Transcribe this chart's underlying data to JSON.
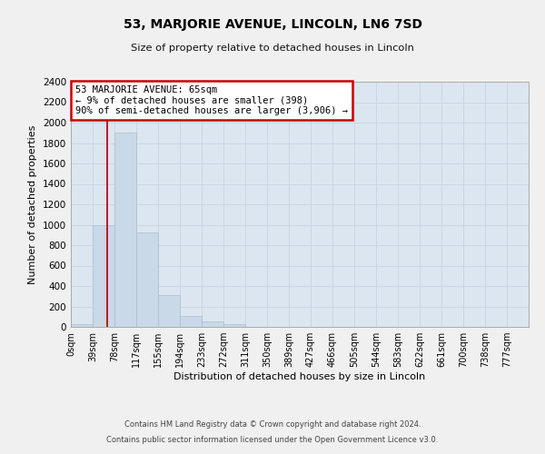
{
  "title": "53, MARJORIE AVENUE, LINCOLN, LN6 7SD",
  "subtitle": "Size of property relative to detached houses in Lincoln",
  "xlabel": "Distribution of detached houses by size in Lincoln",
  "ylabel": "Number of detached properties",
  "annotation_title": "53 MARJORIE AVENUE: 65sqm",
  "annotation_line1": "← 9% of detached houses are smaller (398)",
  "annotation_line2": "90% of semi-detached houses are larger (3,906) →",
  "footer1": "Contains HM Land Registry data © Crown copyright and database right 2024.",
  "footer2": "Contains public sector information licensed under the Open Government Licence v3.0.",
  "bar_labels": [
    "0sqm",
    "39sqm",
    "78sqm",
    "117sqm",
    "155sqm",
    "194sqm",
    "233sqm",
    "272sqm",
    "311sqm",
    "350sqm",
    "389sqm",
    "427sqm",
    "466sqm",
    "505sqm",
    "544sqm",
    "583sqm",
    "622sqm",
    "661sqm",
    "700sqm",
    "738sqm",
    "777sqm"
  ],
  "bar_values": [
    25,
    1000,
    1900,
    925,
    310,
    105,
    50,
    30,
    0,
    0,
    0,
    0,
    0,
    0,
    0,
    0,
    0,
    0,
    0,
    0,
    0
  ],
  "bar_color": "#c9d9e8",
  "bar_edge_color": "#a8bece",
  "grid_color": "#c8d4e2",
  "bg_color": "#dce6f0",
  "vline_x": 65,
  "vline_color": "#cc0000",
  "annotation_box_color": "#ffffff",
  "annotation_box_edge": "#cc0000",
  "ylim": [
    0,
    2400
  ],
  "yticks": [
    0,
    200,
    400,
    600,
    800,
    1000,
    1200,
    1400,
    1600,
    1800,
    2000,
    2200,
    2400
  ],
  "bin_width": 39,
  "fig_width": 6.0,
  "fig_height": 5.0,
  "fig_bg": "#f0f0f0"
}
